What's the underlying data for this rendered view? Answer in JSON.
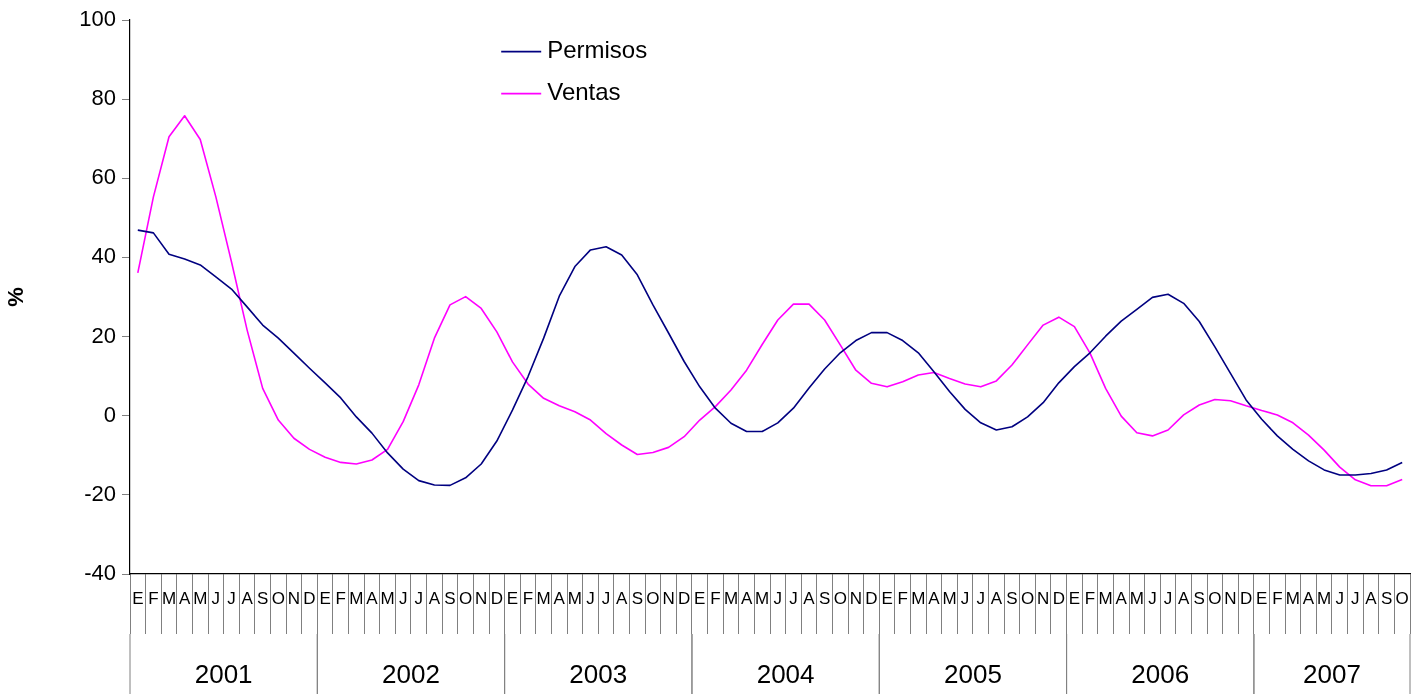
{
  "chart_data": {
    "type": "line",
    "ylabel": "%",
    "ylim": [
      -40,
      100
    ],
    "yticks": [
      -40,
      -20,
      0,
      20,
      40,
      60,
      80,
      100
    ],
    "grid": false,
    "legend": "top",
    "marker": "none",
    "line_style": "solid",
    "categories": [
      "E",
      "F",
      "M",
      "A",
      "M",
      "J",
      "J",
      "A",
      "S",
      "O",
      "N",
      "D",
      "E",
      "F",
      "M",
      "A",
      "M",
      "J",
      "J",
      "A",
      "S",
      "O",
      "N",
      "D",
      "E",
      "F",
      "M",
      "A",
      "M",
      "J",
      "J",
      "A",
      "S",
      "O",
      "N",
      "D",
      "E",
      "F",
      "M",
      "A",
      "M",
      "J",
      "J",
      "A",
      "S",
      "O",
      "N",
      "D",
      "E",
      "F",
      "M",
      "A",
      "M",
      "J",
      "J",
      "A",
      "S",
      "O",
      "N",
      "D",
      "E",
      "F",
      "M",
      "A",
      "M",
      "J",
      "J",
      "A",
      "S",
      "O",
      "N",
      "D",
      "E",
      "F",
      "M",
      "A",
      "M",
      "J",
      "J",
      "A",
      "S",
      "O"
    ],
    "annotations": [
      "2001",
      "2002",
      "2003",
      "2004",
      "2005",
      "2006",
      "2007"
    ],
    "series": [
      {
        "name": "Permisos",
        "color": "#000080",
        "values": [
          46.9,
          46.2,
          40.8,
          39.6,
          38.1,
          35.1,
          32,
          27.5,
          22.9,
          19.6,
          15.8,
          12,
          8.3,
          4.5,
          -0.3,
          -4.4,
          -9.4,
          -13.5,
          -16.4,
          -17.5,
          -17.6,
          -15.7,
          -12.2,
          -6.4,
          1.4,
          9.9,
          19.6,
          30.2,
          37.7,
          41.9,
          42.7,
          40.6,
          35.6,
          28,
          20.9,
          13.7,
          7.3,
          1.9,
          -1.9,
          -4,
          -4,
          -1.8,
          1.9,
          7,
          11.8,
          15.9,
          19,
          21,
          21,
          19,
          15.9,
          11.1,
          6.1,
          1.6,
          -1.8,
          -3.6,
          -2.8,
          -0.3,
          3.3,
          8.3,
          12.4,
          15.9,
          20.1,
          23.9,
          26.9,
          29.9,
          30.7,
          28.4,
          23.8,
          17.4,
          10.7,
          4,
          -0.9,
          -5.1,
          -8.5,
          -11.4,
          -13.7,
          -15,
          -15,
          -14.6,
          -13.7,
          -11.8
        ]
      },
      {
        "name": "Ventas",
        "color": "#ff00ff",
        "values": [
          36.1,
          55.3,
          70.5,
          75.8,
          69.8,
          55.3,
          38.9,
          21.7,
          6.9,
          -1.1,
          -5.7,
          -8.5,
          -10.5,
          -11.8,
          -12.2,
          -11.2,
          -8.5,
          -1.5,
          7.8,
          19.6,
          28,
          30.1,
          27.1,
          21.2,
          13.6,
          8,
          4.4,
          2.5,
          1,
          -1.1,
          -4.5,
          -7.4,
          -9.8,
          -9.3,
          -8,
          -5.3,
          -1.1,
          2.3,
          6.5,
          11.5,
          18,
          24.2,
          28.2,
          28.2,
          24.2,
          17.9,
          11.5,
          8.2,
          7.3,
          8.6,
          10.3,
          10.9,
          9.4,
          8,
          7.3,
          8.8,
          12.8,
          17.9,
          22.9,
          24.9,
          22.5,
          15.8,
          6.9,
          -0.1,
          -4.3,
          -5.1,
          -3.6,
          0.2,
          2.7,
          4.1,
          3.8,
          2.5,
          1.3,
          0.2,
          -1.8,
          -4.9,
          -8.7,
          -13,
          -16.2,
          -17.7,
          -17.7,
          -16.1
        ]
      }
    ]
  }
}
